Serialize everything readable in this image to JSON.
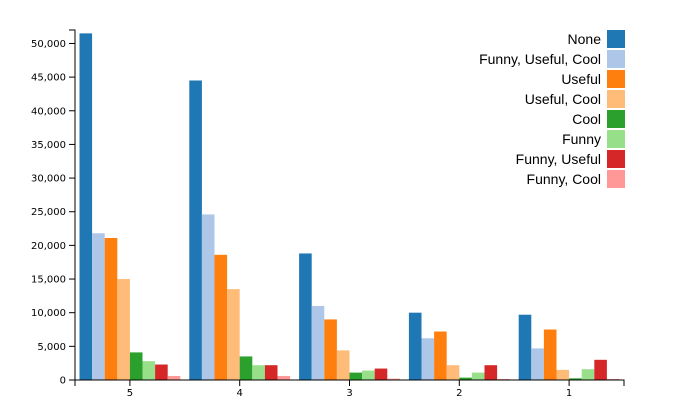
{
  "chart_data": {
    "type": "bar",
    "title": "",
    "xlabel": "",
    "ylabel": "",
    "categories": [
      "5",
      "4",
      "3",
      "2",
      "1"
    ],
    "ylim": [
      0,
      52000
    ],
    "yticks": [
      0,
      5000,
      10000,
      15000,
      20000,
      25000,
      30000,
      35000,
      40000,
      45000,
      50000
    ],
    "ytick_labels": [
      "0",
      "5,000",
      "10,000",
      "15,000",
      "20,000",
      "25,000",
      "30,000",
      "35,000",
      "40,000",
      "45,000",
      "50,000"
    ],
    "grid": false,
    "legend_position": "top-right",
    "series": [
      {
        "name": "None",
        "color": "#1f77b4",
        "values": [
          51500,
          44500,
          18800,
          10000,
          9700
        ]
      },
      {
        "name": "Funny, Useful, Cool",
        "color": "#aec7e8",
        "values": [
          21800,
          24600,
          11000,
          6200,
          4700
        ]
      },
      {
        "name": "Useful",
        "color": "#ff7f0e",
        "values": [
          21100,
          18600,
          9000,
          7200,
          7500
        ]
      },
      {
        "name": "Useful, Cool",
        "color": "#ffbb78",
        "values": [
          15000,
          13500,
          4400,
          2200,
          1500
        ]
      },
      {
        "name": "Cool",
        "color": "#2ca02c",
        "values": [
          4100,
          3500,
          1100,
          350,
          250
        ]
      },
      {
        "name": "Funny",
        "color": "#98df8a",
        "values": [
          2800,
          2200,
          1400,
          1100,
          1600
        ]
      },
      {
        "name": "Funny, Useful",
        "color": "#d62728",
        "values": [
          2300,
          2200,
          1700,
          2200,
          3000
        ]
      },
      {
        "name": "Funny, Cool",
        "color": "#ff9896",
        "values": [
          600,
          600,
          200,
          150,
          150
        ]
      }
    ]
  }
}
